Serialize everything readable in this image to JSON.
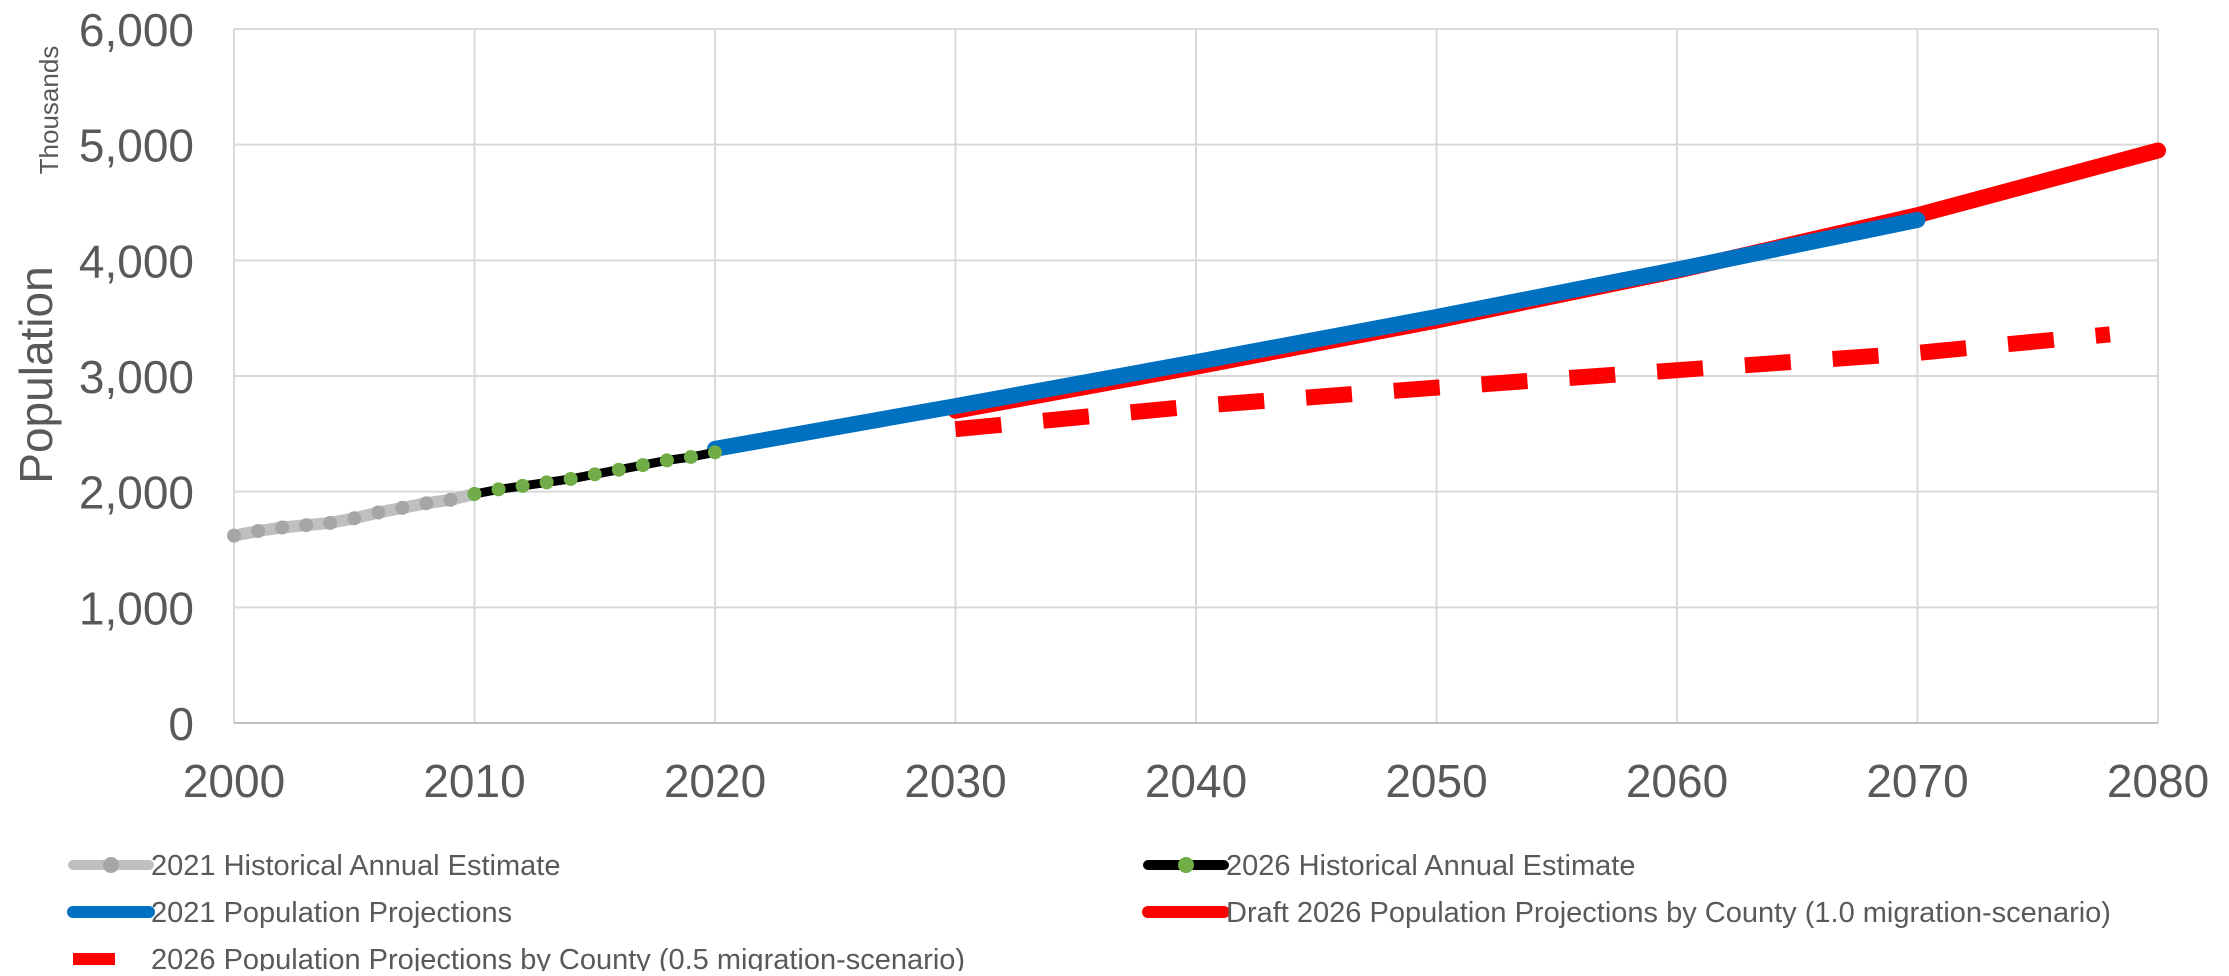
{
  "chart_data": {
    "type": "line",
    "title": "",
    "ylabel": "Population",
    "y_units_label": "Thousands",
    "xlim": [
      2000,
      2080
    ],
    "ylim": [
      0,
      6000
    ],
    "x_ticks": [
      2000,
      2010,
      2020,
      2030,
      2040,
      2050,
      2060,
      2070,
      2080
    ],
    "x_tick_labels": [
      "2000",
      "2010",
      "2020",
      "2030",
      "2040",
      "2050",
      "2060",
      "2070",
      "2080"
    ],
    "y_ticks": [
      0,
      1000,
      2000,
      3000,
      4000,
      5000,
      6000
    ],
    "y_tick_labels": [
      "0",
      "1,000",
      "2,000",
      "3,000",
      "4,000",
      "5,000",
      "6,000"
    ],
    "grid": true,
    "legend_position": "bottom",
    "series": [
      {
        "name": "2021 Historical Annual Estimate",
        "style": "line-markers",
        "color": "#BFBFBF",
        "marker_color": "#A6A6A6",
        "x": [
          2000,
          2001,
          2002,
          2003,
          2004,
          2005,
          2006,
          2007,
          2008,
          2009,
          2010
        ],
        "y": [
          1620,
          1660,
          1690,
          1710,
          1730,
          1770,
          1820,
          1860,
          1900,
          1930,
          1980
        ]
      },
      {
        "name": "2026 Historical Annual Estimate",
        "style": "line-markers",
        "color": "#000000",
        "marker_color": "#70AD47",
        "x": [
          2010,
          2011,
          2012,
          2013,
          2014,
          2015,
          2016,
          2017,
          2018,
          2019,
          2020
        ],
        "y": [
          1980,
          2020,
          2050,
          2080,
          2110,
          2150,
          2190,
          2230,
          2270,
          2300,
          2340
        ]
      },
      {
        "name": "2021 Population Projections",
        "style": "line",
        "color": "#0070C0",
        "x": [
          2020,
          2030,
          2040,
          2050,
          2060,
          2070
        ],
        "y": [
          2370,
          2740,
          3120,
          3510,
          3920,
          4350
        ]
      },
      {
        "name": "Draft 2026 Population Projections by County (1.0 migration-scenario)",
        "style": "line",
        "color": "#FF0000",
        "x": [
          2030,
          2040,
          2050,
          2060,
          2070,
          2080
        ],
        "y": [
          2700,
          3080,
          3480,
          3910,
          4390,
          4950
        ]
      },
      {
        "name": "2026 Population Projections by County (0.5 migration-scenario)",
        "style": "dashed",
        "color": "#FF0000",
        "x": [
          2030,
          2040,
          2050,
          2060,
          2070,
          2078
        ],
        "y": [
          2540,
          2740,
          2900,
          3050,
          3200,
          3360
        ]
      }
    ]
  }
}
